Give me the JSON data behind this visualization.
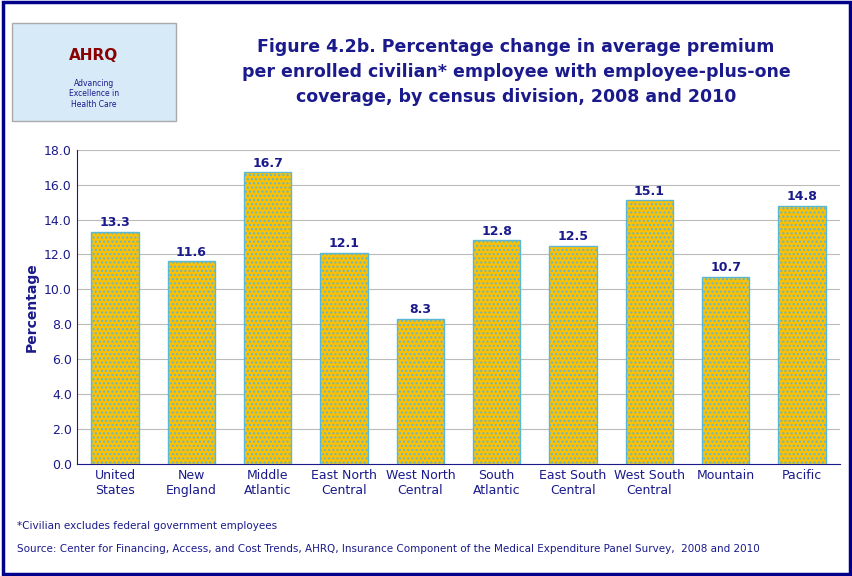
{
  "categories": [
    "United\nStates",
    "New\nEngland",
    "Middle\nAtlantic",
    "East North\nCentral",
    "West North\nCentral",
    "South\nAtlantic",
    "East South\nCentral",
    "West South\nCentral",
    "Mountain",
    "Pacific"
  ],
  "values": [
    13.3,
    11.6,
    16.7,
    12.1,
    8.3,
    12.8,
    12.5,
    15.1,
    10.7,
    14.8
  ],
  "bar_color": "#FFC000",
  "bar_edge_color": "#5BB8D4",
  "title_line1": "Figure 4.2b. Percentage change in average premium",
  "title_line2": "per enrolled civilian* employee with employee-plus-one",
  "title_line3": "coverage, by census division, 2008 and 2010",
  "ylabel": "Percentage",
  "ylim": [
    0,
    18.0
  ],
  "yticks": [
    0.0,
    2.0,
    4.0,
    6.0,
    8.0,
    10.0,
    12.0,
    14.0,
    16.0,
    18.0
  ],
  "title_color": "#1A1A8C",
  "axis_color": "#1A1A8C",
  "label_color": "#1A1A8C",
  "grid_color": "#BBBBBB",
  "background_color": "#FFFFFF",
  "outer_border_color": "#00008B",
  "separator_color": "#00008B",
  "footnote1": "*Civilian excludes federal government employees",
  "footnote2": "Source: Center for Financing, Access, and Cost Trends, AHRQ, Insurance Component of the Medical Expenditure Panel Survey,  2008 and 2010",
  "value_label_fontsize": 9,
  "tick_label_fontsize": 9,
  "title_fontsize": 12.5,
  "ylabel_fontsize": 10
}
